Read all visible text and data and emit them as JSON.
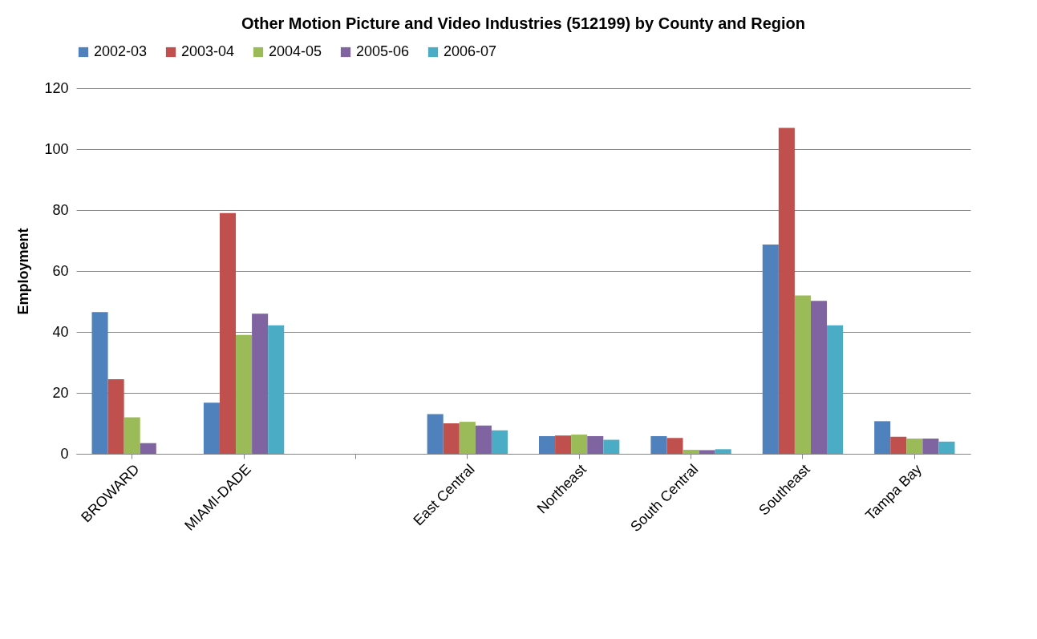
{
  "chart_data": {
    "type": "bar",
    "title": "Other Motion Picture and Video Industries (512199) by County and Region",
    "ylabel": "Employment",
    "categories": [
      "BROWARD",
      "MIAMI-DADE",
      null,
      "East Central",
      "Northeast",
      "South Central",
      "Southeast",
      "Tampa Bay"
    ],
    "series": [
      {
        "name": "2002-03",
        "color": "#4f81bd",
        "values": [
          46.5,
          16.8,
          null,
          13,
          5.8,
          5.8,
          68.7,
          10.7
        ]
      },
      {
        "name": "2003-04",
        "color": "#c0504d",
        "values": [
          24.5,
          79,
          null,
          10,
          6,
          5.2,
          107,
          5.6
        ]
      },
      {
        "name": "2004-05",
        "color": "#9bbb59",
        "values": [
          12,
          39,
          null,
          10.5,
          6.3,
          1.3,
          52,
          5
        ]
      },
      {
        "name": "2005-06",
        "color": "#8064a2",
        "values": [
          3.5,
          46,
          null,
          9.3,
          5.8,
          1.2,
          50.2,
          5
        ]
      },
      {
        "name": "2006-07",
        "color": "#4bacc6",
        "values": [
          null,
          42.2,
          null,
          7.7,
          4.6,
          1.5,
          42.2,
          4
        ]
      }
    ],
    "ylim": [
      0,
      120
    ],
    "yticks": [
      0,
      20,
      40,
      60,
      80,
      100,
      120
    ],
    "grid": "y",
    "legend": "top"
  }
}
